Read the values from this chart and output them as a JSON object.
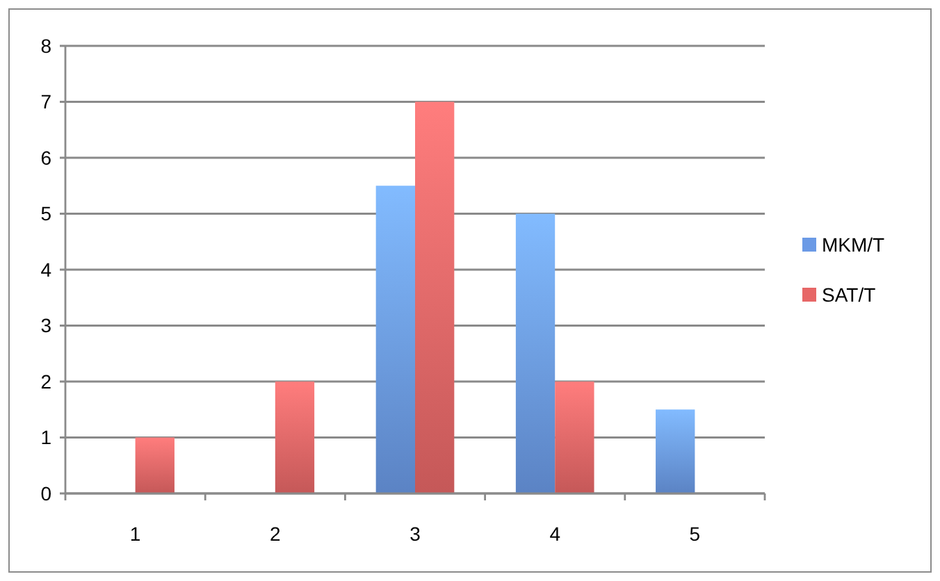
{
  "chart_data": {
    "type": "bar",
    "categories": [
      "1",
      "2",
      "3",
      "4",
      "5"
    ],
    "series": [
      {
        "name": "MKM/T",
        "color": "#6b9ae6",
        "values": [
          null,
          null,
          5.5,
          5,
          1.5
        ]
      },
      {
        "name": "SAT/T",
        "color": "#e76767",
        "values": [
          1,
          2,
          7,
          2,
          null
        ]
      }
    ],
    "ylim": [
      0,
      8
    ],
    "yticks": [
      0,
      1,
      2,
      3,
      4,
      5,
      6,
      7,
      8
    ],
    "grid": "y",
    "legend": "right"
  }
}
